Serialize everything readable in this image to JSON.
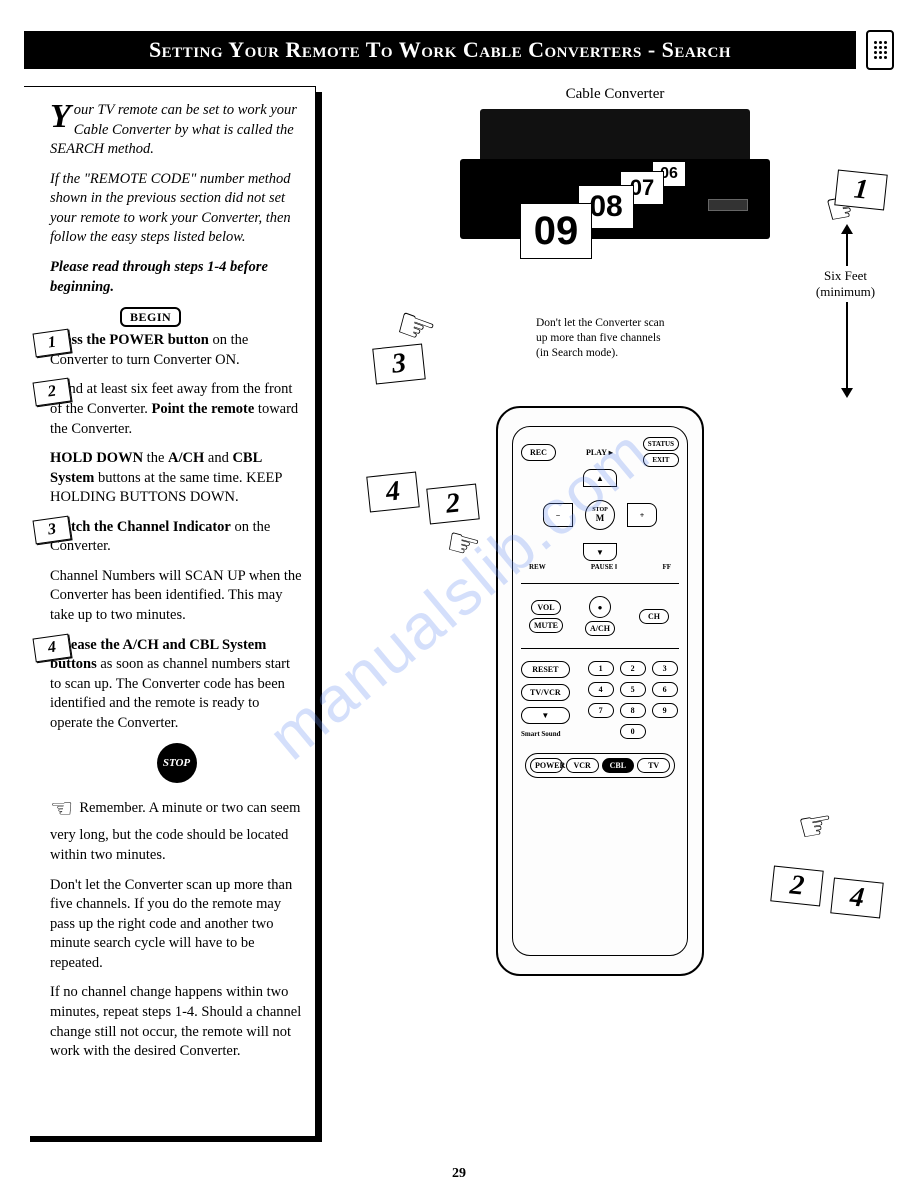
{
  "title": "Setting Your Remote To Work Cable Converters - Search",
  "intro": {
    "dropcap": "Y",
    "p1_rest": "our TV remote can be set to work your Cable Converter by what is called the SEARCH method.",
    "p2": "If the \"REMOTE CODE\" number method shown in the previous section did not set your remote to work your Converter, then follow the easy steps listed below.",
    "p3": "Please read through steps 1-4 before beginning."
  },
  "begin_label": "BEGIN",
  "steps": {
    "s1": {
      "num": "1",
      "bold": "Press the POWER button",
      "rest": " on the Converter to turn Converter ON."
    },
    "s2": {
      "num": "2",
      "p1": "Stand at least six feet away from the front of the Converter. ",
      "bold1": "Point the remote",
      "p1b": " toward the Converter.",
      "bold2": "HOLD DOWN",
      "p2a": " the ",
      "bold3": "A/CH",
      "p2b": " and ",
      "bold4": "CBL System",
      "p2c": " buttons at the same time. KEEP HOLDING BUTTONS DOWN."
    },
    "s3": {
      "num": "3",
      "bold": "Watch the Channel Indicator",
      "rest": " on the Converter.",
      "p2": "Channel Numbers will SCAN UP when the Converter has been identified. This may take up to two minutes."
    },
    "s4": {
      "num": "4",
      "bold": "Release the A/CH and CBL System buttons",
      "rest": " as soon as channel numbers start to scan up. The Converter code has been identified and the remote is ready to operate the Converter."
    }
  },
  "stop_label": "STOP",
  "notes": {
    "n1": "Remember. A minute or two can seem very long, but the code should be located within two minutes.",
    "n2": "Don't let the Converter scan up more than five channels. If you do the remote may pass up the right code and another two minute search cycle will have to be repeated.",
    "n3": "If no channel change happens within two minutes, repeat steps 1-4. Should a channel change still not occur, the remote will not work with the desired Converter."
  },
  "diagram": {
    "converter_label": "Cable Converter",
    "channels": {
      "c09": "09",
      "c08": "08",
      "c07": "07",
      "c06": "06"
    },
    "scan_note_l1": "Don't let the Converter scan",
    "scan_note_l2": "up more than five channels",
    "scan_note_l3": "(in Search mode).",
    "six_feet": "Six Feet",
    "six_feet_sub": "(minimum)",
    "markers": {
      "m1": "1",
      "m2": "2",
      "m3": "3",
      "m4": "4"
    }
  },
  "remote": {
    "rec": "REC",
    "play": "PLAY ▸",
    "status": "STATUS",
    "exit": "EXIT",
    "stop_m": "STOP",
    "m": "M",
    "rew": "REW",
    "ff": "FF",
    "pause": "PAUSE ‖",
    "minus": "−",
    "plus": "+",
    "vol": "VOL",
    "mute": "MUTE",
    "ach": "A/CH",
    "ch": "CH",
    "reset": "RESET",
    "tvvcr": "TV/VCR",
    "smart": "Smart Sound",
    "nums": [
      "1",
      "2",
      "3",
      "4",
      "5",
      "6",
      "7",
      "8",
      "9",
      "0"
    ],
    "power": "POWER",
    "vcr": "VCR",
    "cbl": "CBL",
    "tv": "TV"
  },
  "watermark": "manualslib.com",
  "page_number": "29"
}
